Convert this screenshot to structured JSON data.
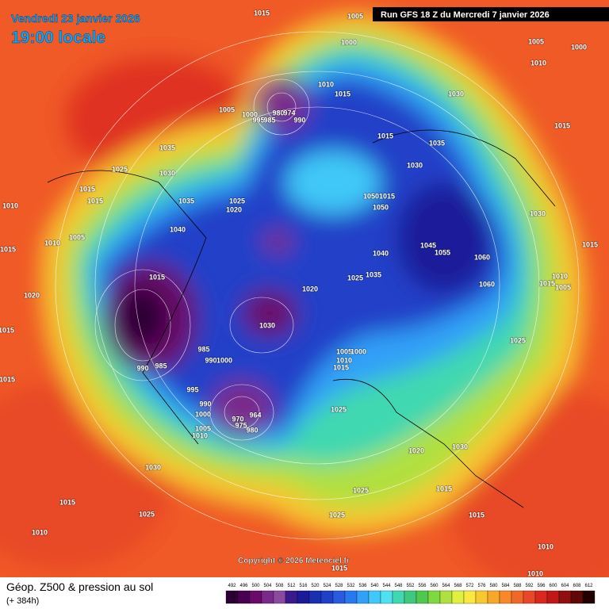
{
  "header": {
    "date": "Vendredi 23 janvier 2026",
    "time": "19:00 locale",
    "run": "Run GFS 18 Z du Mercredi 7 janvier 2026"
  },
  "copyright": "Copyright © 2026 Meteociel.fr",
  "legend": {
    "title": "Géop. Z500 & pression au sol",
    "lead": "(+ 384h)",
    "labels": [
      "492",
      "496",
      "500",
      "504",
      "508",
      "512",
      "516",
      "520",
      "524",
      "528",
      "532",
      "536",
      "540",
      "544",
      "548",
      "552",
      "556",
      "560",
      "564",
      "568",
      "572",
      "576",
      "580",
      "584",
      "588",
      "592",
      "596",
      "600",
      "604",
      "608",
      "612"
    ],
    "colors": [
      "#2a0033",
      "#4a0050",
      "#6a0a6a",
      "#7a2a8a",
      "#8a4aa0",
      "#3a1a8a",
      "#1a1a9a",
      "#1a30b0",
      "#2040c8",
      "#2a5ae0",
      "#2a78f0",
      "#30a0f8",
      "#40c8f8",
      "#50e0f0",
      "#40d8b0",
      "#40c880",
      "#50c850",
      "#80d840",
      "#b0e040",
      "#e0f040",
      "#f8e840",
      "#f8c830",
      "#f8a828",
      "#f88828",
      "#f06828",
      "#e84828",
      "#d82820",
      "#c01818",
      "#901010",
      "#600808",
      "#200000"
    ]
  },
  "isobars": [
    "1015",
    "1005",
    "1000",
    "1005",
    "1000",
    "1010",
    "1010",
    "1015",
    "1030",
    "1005",
    "1000",
    "995",
    "985",
    "980",
    "974",
    "990",
    "1015",
    "1015",
    "1035",
    "1035",
    "1025",
    "1030",
    "1030",
    "1015",
    "1015",
    "1010",
    "1035",
    "1025",
    "1020",
    "1050",
    "1015",
    "1050",
    "1030",
    "1040",
    "1010",
    "1005",
    "1015",
    "1045",
    "1055",
    "1040",
    "1060",
    "1015",
    "1015",
    "1035",
    "1025",
    "1010",
    "1015",
    "1005",
    "1060",
    "1020",
    "1020",
    "1030",
    "1015",
    "1025",
    "985",
    "1005",
    "1000",
    "990",
    "1000",
    "1010",
    "990",
    "985",
    "1015",
    "1015",
    "995",
    "990",
    "1000",
    "970",
    "964",
    "975",
    "980",
    "1025",
    "1005",
    "1010",
    "1020",
    "1030",
    "1030",
    "1025",
    "1015",
    "1015",
    "1025",
    "1025",
    "1015",
    "1010",
    "1010",
    "1015",
    "1010"
  ]
}
